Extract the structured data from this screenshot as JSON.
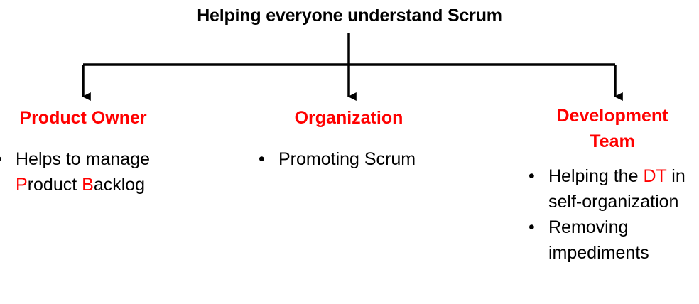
{
  "title": "Helping everyone understand Scrum",
  "colors": {
    "accent": "#ff0000",
    "text": "#000000",
    "line": "#000000"
  },
  "branches": [
    {
      "heading": "Product Owner",
      "bullets": [
        {
          "segments": [
            "Helps to manage ",
            "P",
            "roduct ",
            "B",
            "acklog"
          ]
        }
      ]
    },
    {
      "heading": "Organization",
      "bullets": [
        {
          "segments": [
            "Promoting Scrum"
          ]
        }
      ]
    },
    {
      "heading_lines": [
        "Development",
        "Team"
      ],
      "bullets": [
        {
          "segments": [
            "Helping the ",
            "DT",
            " in self-organization"
          ]
        },
        {
          "segments": [
            "Removing impediments"
          ]
        }
      ]
    }
  ]
}
